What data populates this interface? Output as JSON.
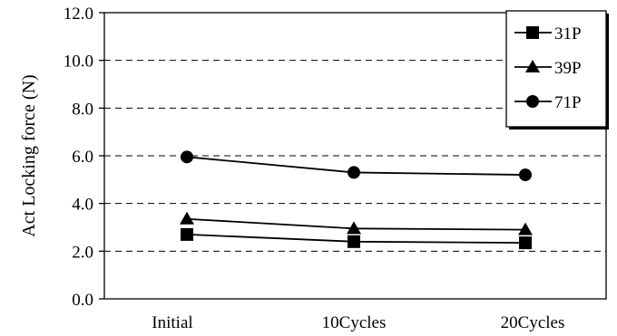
{
  "chart_data": {
    "type": "line",
    "title": "",
    "xlabel": "",
    "ylabel": "Act  Locking force (N)",
    "categories": [
      "Initial",
      "10Cycles",
      "20Cycles"
    ],
    "ylim": [
      0.0,
      12.0
    ],
    "yticks": [
      "0.0",
      "2.0",
      "4.0",
      "6.0",
      "8.0",
      "10.0",
      "12.0"
    ],
    "grid": "horizontal-dashed",
    "legend_position": "top-right",
    "series": [
      {
        "name": "31P",
        "marker": "square",
        "color": "#000000",
        "values": [
          2.7,
          2.4,
          2.35
        ]
      },
      {
        "name": "39P",
        "marker": "triangle",
        "color": "#000000",
        "values": [
          3.35,
          2.95,
          2.9
        ]
      },
      {
        "name": "71P",
        "marker": "circle",
        "color": "#000000",
        "values": [
          5.95,
          5.3,
          5.2
        ]
      }
    ]
  }
}
